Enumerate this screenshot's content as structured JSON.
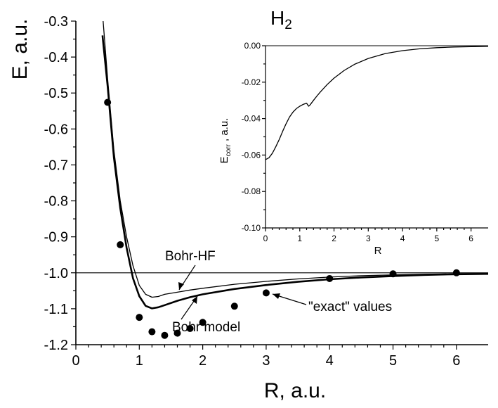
{
  "chart_data": [
    {
      "type": "line",
      "title": "",
      "xlabel": "R, a.u.",
      "ylabel": "E, a.u.",
      "xlim": [
        0,
        6.5
      ],
      "ylim": [
        -1.2,
        -0.3
      ],
      "x_ticks": [
        "0",
        "1",
        "2",
        "3",
        "4",
        "5",
        "6"
      ],
      "y_ticks": [
        "-0.3",
        "-0.4",
        "-0.5",
        "-0.6",
        "-0.7",
        "-0.8",
        "-0.9",
        "-1.0",
        "-1.1",
        "-1.2"
      ],
      "reference_line": {
        "y": -1.0
      },
      "series": [
        {
          "name": "Bohr-HF",
          "points": [
            [
              0.43,
              -0.3
            ],
            [
              0.5,
              -0.46
            ],
            [
              0.6,
              -0.66
            ],
            [
              0.7,
              -0.8
            ],
            [
              0.8,
              -0.9
            ],
            [
              0.9,
              -0.98
            ],
            [
              1.0,
              -1.035
            ],
            [
              1.1,
              -1.06
            ],
            [
              1.2,
              -1.068
            ],
            [
              1.3,
              -1.066
            ],
            [
              1.4,
              -1.06
            ],
            [
              1.5,
              -1.057
            ],
            [
              1.6,
              -1.054
            ],
            [
              1.8,
              -1.048
            ],
            [
              2.0,
              -1.043
            ],
            [
              2.5,
              -1.032
            ],
            [
              3.0,
              -1.024
            ],
            [
              3.5,
              -1.017
            ],
            [
              4.0,
              -1.012
            ],
            [
              4.5,
              -1.008
            ],
            [
              5.0,
              -1.006
            ],
            [
              5.5,
              -1.004
            ],
            [
              6.0,
              -1.003
            ],
            [
              6.5,
              -1.002
            ]
          ]
        },
        {
          "name": "Bohr model",
          "points": [
            [
              0.42,
              -0.34
            ],
            [
              0.5,
              -0.48
            ],
            [
              0.6,
              -0.68
            ],
            [
              0.7,
              -0.82
            ],
            [
              0.8,
              -0.93
            ],
            [
              0.9,
              -1.015
            ],
            [
              1.0,
              -1.065
            ],
            [
              1.1,
              -1.092
            ],
            [
              1.2,
              -1.099
            ],
            [
              1.3,
              -1.096
            ],
            [
              1.4,
              -1.09
            ],
            [
              1.6,
              -1.078
            ],
            [
              1.8,
              -1.068
            ],
            [
              2.0,
              -1.06
            ],
            [
              2.5,
              -1.045
            ],
            [
              3.0,
              -1.034
            ],
            [
              3.5,
              -1.025
            ],
            [
              4.0,
              -1.018
            ],
            [
              4.5,
              -1.013
            ],
            [
              5.0,
              -1.009
            ],
            [
              5.5,
              -1.006
            ],
            [
              6.0,
              -1.004
            ],
            [
              6.5,
              -1.003
            ]
          ]
        },
        {
          "name": "\"exact\" values",
          "style": "markers",
          "points": [
            [
              0.5,
              -0.526
            ],
            [
              0.7,
              -0.922
            ],
            [
              1.0,
              -1.124
            ],
            [
              1.2,
              -1.164
            ],
            [
              1.4,
              -1.174
            ],
            [
              1.6,
              -1.168
            ],
            [
              1.8,
              -1.155
            ],
            [
              2.0,
              -1.138
            ],
            [
              2.5,
              -1.093
            ],
            [
              3.0,
              -1.056
            ],
            [
              4.0,
              -1.016
            ],
            [
              5.0,
              -1.003
            ],
            [
              6.0,
              -1.0
            ]
          ]
        }
      ],
      "annotations": [
        {
          "text": "Bohr-HF",
          "points_to": [
            1.6,
            -1.054
          ]
        },
        {
          "text": "Bohr model",
          "points_to": [
            1.9,
            -1.064
          ]
        },
        {
          "text": "\"exact\" values",
          "points_to": [
            3.0,
            -1.056
          ]
        }
      ]
    },
    {
      "type": "line",
      "title": "H2",
      "title_main": "H",
      "title_sub": "2",
      "xlabel": "R",
      "ylabel": "E_corr , a.u.",
      "ylabel_main": "E",
      "ylabel_sub": "corr",
      "ylabel_rest": " , a.u.",
      "xlim": [
        0,
        6.5
      ],
      "ylim": [
        -0.1,
        0.0
      ],
      "x_ticks": [
        "0",
        "1",
        "2",
        "3",
        "4",
        "5",
        "6"
      ],
      "y_ticks": [
        "0.00",
        "-0.02",
        "-0.04",
        "-0.06",
        "-0.08",
        "-0.10"
      ],
      "series": [
        {
          "name": "",
          "points": [
            [
              0.0,
              -0.0625
            ],
            [
              0.1,
              -0.0615
            ],
            [
              0.2,
              -0.059
            ],
            [
              0.3,
              -0.0555
            ],
            [
              0.4,
              -0.0515
            ],
            [
              0.5,
              -0.047
            ],
            [
              0.6,
              -0.0428
            ],
            [
              0.7,
              -0.0392
            ],
            [
              0.8,
              -0.0365
            ],
            [
              0.9,
              -0.0345
            ],
            [
              1.0,
              -0.0332
            ],
            [
              1.1,
              -0.0322
            ],
            [
              1.2,
              -0.0316
            ],
            [
              1.26,
              -0.0332
            ],
            [
              1.3,
              -0.0325
            ],
            [
              1.4,
              -0.03
            ],
            [
              1.5,
              -0.0276
            ],
            [
              1.6,
              -0.0254
            ],
            [
              1.8,
              -0.0213
            ],
            [
              2.0,
              -0.0178
            ],
            [
              2.3,
              -0.0135
            ],
            [
              2.6,
              -0.0102
            ],
            [
              3.0,
              -0.007
            ],
            [
              3.5,
              -0.0043
            ],
            [
              4.0,
              -0.0027
            ],
            [
              4.5,
              -0.0017
            ],
            [
              5.0,
              -0.0011
            ],
            [
              5.5,
              -0.0007
            ],
            [
              6.0,
              -0.0005
            ],
            [
              6.5,
              -0.0003
            ]
          ]
        }
      ]
    }
  ]
}
